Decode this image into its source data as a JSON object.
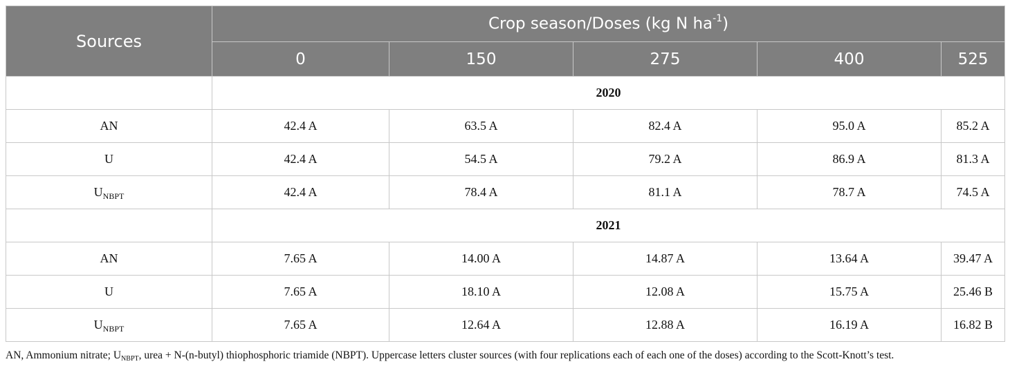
{
  "table": {
    "sources_header": "Sources",
    "dose_header": "Crop season/Doses (kg N ha",
    "dose_header_sup": "-1",
    "dose_header_close": ")",
    "doses": [
      "0",
      "150",
      "275",
      "400",
      "525"
    ],
    "sections": [
      {
        "year": "2020",
        "rows": [
          {
            "source": "AN",
            "source_sub": "",
            "values": [
              "42.4 A",
              "63.5 A",
              "82.4 A",
              "95.0 A",
              "85.2 A"
            ]
          },
          {
            "source": "U",
            "source_sub": "",
            "values": [
              "42.4 A",
              "54.5 A",
              "79.2 A",
              "86.9 A",
              "81.3 A"
            ]
          },
          {
            "source": "U",
            "source_sub": "NBPT",
            "values": [
              "42.4 A",
              "78.4 A",
              "81.1 A",
              "78.7 A",
              "74.5 A"
            ]
          }
        ]
      },
      {
        "year": "2021",
        "rows": [
          {
            "source": "AN",
            "source_sub": "",
            "values": [
              "7.65 A",
              "14.00 A",
              "14.87 A",
              "13.64 A",
              "39.47 A"
            ]
          },
          {
            "source": "U",
            "source_sub": "",
            "values": [
              "7.65 A",
              "18.10 A",
              "12.08 A",
              "15.75 A",
              "25.46 B"
            ]
          },
          {
            "source": "U",
            "source_sub": "NBPT",
            "values": [
              "7.65 A",
              "12.64 A",
              "12.88 A",
              "16.19 A",
              "16.82 B"
            ]
          }
        ]
      }
    ]
  },
  "footnote": {
    "part1": "AN, Ammonium nitrate; U",
    "sub": "NBPT",
    "part2": ", urea + N-(n-butyl) thiophosphoric triamide (NBPT). Uppercase letters cluster sources (with four replications each of each one of the doses) according to the Scott-Knott’s test."
  }
}
